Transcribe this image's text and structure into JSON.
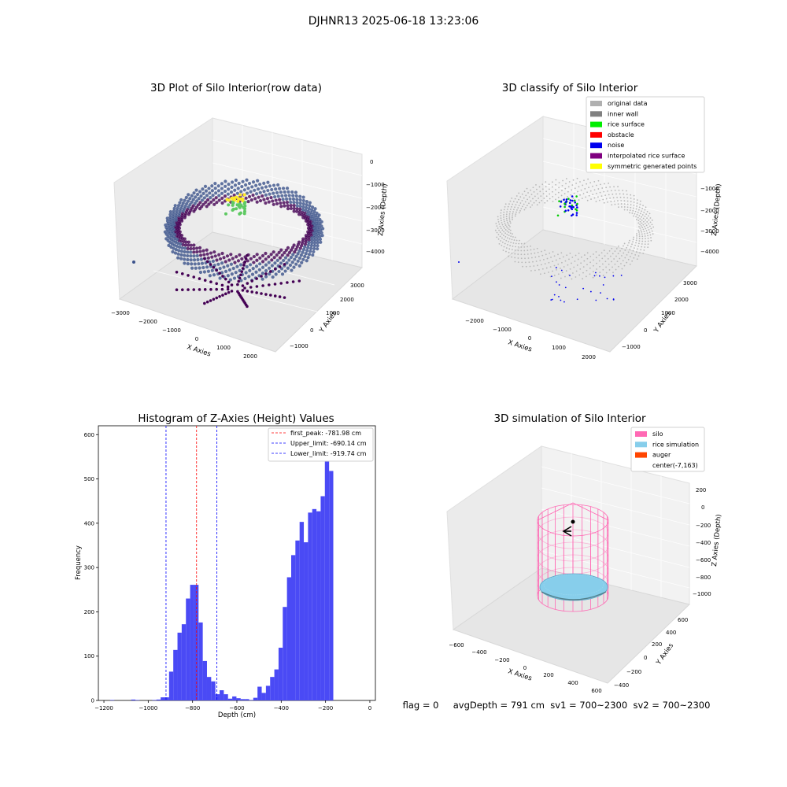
{
  "figure_title": "DJHNR13 2025-06-18 13:23:06",
  "status_text": "flag = 0     avgDepth = 791 cm  sv1 = 700~2300  sv2 = 700~2300",
  "chart_data": [
    {
      "type": "scatter3d",
      "title": "3D Plot of Silo Interior(row data)",
      "xlabel": "X Axies",
      "ylabel": "Y Axies",
      "zlabel": "Z Axies (Depth)",
      "x_ticks": [
        "−3000",
        "−2000",
        "−1000",
        "0",
        "1000",
        "2000"
      ],
      "y_ticks": [
        "−1000",
        "0",
        "1000",
        "2000",
        "3000"
      ],
      "z_ticks": [
        "0",
        "−1000",
        "−2000",
        "−3000",
        "−4000"
      ],
      "colormap": [
        "#440154",
        "#3b528b",
        "#21918c",
        "#5ec962",
        "#fde725"
      ]
    },
    {
      "type": "scatter3d",
      "title": "3D classify of Silo Interior",
      "xlabel": "X Axies",
      "ylabel": "Y Axies",
      "zlabel": "Z Axies (Depth)",
      "x_ticks": [
        "−2000",
        "−1000",
        "0",
        "1000",
        "2000"
      ],
      "y_ticks": [
        "−1000",
        "0",
        "1000",
        "2000",
        "3000"
      ],
      "z_ticks": [
        "−1000",
        "−2000",
        "−3000",
        "−4000"
      ],
      "legend_position": "top-right",
      "legend": [
        {
          "label": "original data",
          "color": "#b0b0b0"
        },
        {
          "label": "inner wall",
          "color": "#808080"
        },
        {
          "label": "rice surface",
          "color": "#00ee00"
        },
        {
          "label": "obstacle",
          "color": "#ff0000"
        },
        {
          "label": "noise",
          "color": "#0000ee"
        },
        {
          "label": "interpolated rice surface",
          "color": "#800080"
        },
        {
          "label": "symmetric generated points",
          "color": "#ffff00"
        }
      ]
    },
    {
      "type": "bar",
      "title": "Histogram of Z-Axies (Height) Values",
      "xlabel": "Depth (cm)",
      "ylabel": "Frequency",
      "xlim": [
        -1225,
        25
      ],
      "ylim": [
        0,
        620
      ],
      "x_ticks": [
        -1200,
        -1000,
        -800,
        -600,
        -400,
        -200,
        0
      ],
      "y_ticks": [
        0,
        100,
        200,
        300,
        400,
        500,
        600
      ],
      "bin_width": 19,
      "bar_color": "#4a4af5",
      "bins": [
        {
          "left": -1172,
          "value": 1
        },
        {
          "left": -1153,
          "value": 0
        },
        {
          "left": -1134,
          "value": 0
        },
        {
          "left": -1115,
          "value": 0
        },
        {
          "left": -1096,
          "value": 0
        },
        {
          "left": -1077,
          "value": 2
        },
        {
          "left": -1058,
          "value": 1
        },
        {
          "left": -1039,
          "value": 0
        },
        {
          "left": -1020,
          "value": 0
        },
        {
          "left": -1001,
          "value": 0
        },
        {
          "left": -982,
          "value": 1
        },
        {
          "left": -963,
          "value": 2
        },
        {
          "left": -944,
          "value": 7
        },
        {
          "left": -925,
          "value": 7
        },
        {
          "left": -906,
          "value": 65
        },
        {
          "left": -887,
          "value": 114
        },
        {
          "left": -868,
          "value": 153
        },
        {
          "left": -849,
          "value": 172
        },
        {
          "left": -830,
          "value": 230
        },
        {
          "left": -811,
          "value": 261
        },
        {
          "left": -792,
          "value": 261
        },
        {
          "left": -773,
          "value": 176
        },
        {
          "left": -754,
          "value": 89
        },
        {
          "left": -735,
          "value": 53
        },
        {
          "left": -716,
          "value": 43
        },
        {
          "left": -697,
          "value": 14
        },
        {
          "left": -678,
          "value": 23
        },
        {
          "left": -659,
          "value": 14
        },
        {
          "left": -640,
          "value": 4
        },
        {
          "left": -621,
          "value": 9
        },
        {
          "left": -602,
          "value": 5
        },
        {
          "left": -583,
          "value": 3
        },
        {
          "left": -564,
          "value": 3
        },
        {
          "left": -545,
          "value": 1
        },
        {
          "left": -526,
          "value": 6
        },
        {
          "left": -507,
          "value": 31
        },
        {
          "left": -488,
          "value": 17
        },
        {
          "left": -469,
          "value": 33
        },
        {
          "left": -450,
          "value": 53
        },
        {
          "left": -431,
          "value": 70
        },
        {
          "left": -412,
          "value": 119
        },
        {
          "left": -393,
          "value": 211
        },
        {
          "left": -374,
          "value": 278
        },
        {
          "left": -355,
          "value": 328
        },
        {
          "left": -336,
          "value": 361
        },
        {
          "left": -317,
          "value": 403
        },
        {
          "left": -298,
          "value": 357
        },
        {
          "left": -279,
          "value": 424
        },
        {
          "left": -260,
          "value": 432
        },
        {
          "left": -241,
          "value": 427
        },
        {
          "left": -222,
          "value": 461
        },
        {
          "left": -203,
          "value": 579
        },
        {
          "left": -184,
          "value": 518
        }
      ],
      "vlines": [
        {
          "label": "first_peak: -781.98 cm",
          "x": -781.98,
          "color": "#ff0000"
        },
        {
          "label": "Upper_limit: -690.14 cm",
          "x": -690.14,
          "color": "#0000ff"
        },
        {
          "label": "Lower_limit: -919.74 cm",
          "x": -919.74,
          "color": "#0000ff"
        }
      ],
      "legend_position": "top-right"
    },
    {
      "type": "surface3d",
      "title": "3D simulation of Silo Interior",
      "xlabel": "X Axies",
      "ylabel": "Y Axies",
      "zlabel": "Z Axies (Depth)",
      "x_ticks": [
        "−600",
        "−400",
        "−200",
        "0",
        "200",
        "400",
        "600"
      ],
      "y_ticks": [
        "−400",
        "−200",
        "0",
        "200",
        "400",
        "600"
      ],
      "z_ticks": [
        "200",
        "0",
        "−200",
        "−400",
        "−600",
        "−800",
        "−1000"
      ],
      "legend_position": "top-right",
      "legend": [
        {
          "label": "silo",
          "color": "#ff69b4"
        },
        {
          "label": "rice simulation",
          "color": "#87ceeb"
        },
        {
          "label": "auger",
          "color": "#ff4500"
        },
        {
          "label": "center(-7,163)",
          "color": ""
        }
      ]
    }
  ]
}
